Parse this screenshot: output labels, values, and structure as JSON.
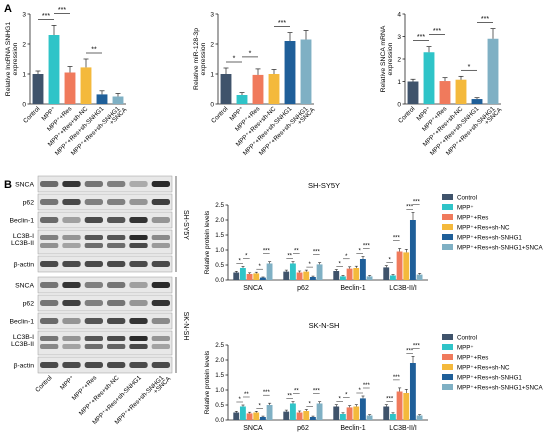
{
  "panel_labels": [
    "A",
    "B"
  ],
  "colors": {
    "Control": "#3f536b",
    "MPP+": "#2fc4c8",
    "MPP+ +Res": "#f07a5c",
    "MPP+ +Res+sh-NC": "#f4b93c",
    "MPP+ +Res+sh-SNHG1": "#1f5f99",
    "MPP+ +Res+sh-SNHG1+SNCA": "#7fb0c4"
  },
  "chart_data": [
    {
      "type": "bar",
      "panel": "A",
      "ylabel": "Relative lncRNA SNHG1 expression",
      "ylim": [
        0,
        3
      ],
      "yticks": [
        "0",
        "1",
        "2",
        "3"
      ],
      "categories": [
        "Control",
        "MPP⁺",
        "MPP⁺+Res",
        "MPP⁺+Res+sh-NC",
        "MPP⁺+Res+sh-SNHG1",
        "MPP⁺+Res+sh-SNHG1\n+SNCA"
      ],
      "values": [
        1.0,
        2.3,
        1.05,
        1.22,
        0.32,
        0.25
      ],
      "errors": [
        0.1,
        0.32,
        0.2,
        0.28,
        0.12,
        0.1
      ],
      "significance": [
        {
          "from": 0,
          "to": 1,
          "label": "***"
        },
        {
          "from": 1,
          "to": 2,
          "label": "***"
        },
        {
          "from": 3,
          "to": 4,
          "label": "**"
        }
      ]
    },
    {
      "type": "bar",
      "panel": "A",
      "ylabel": "Relative miR-128-3p expression",
      "ylim": [
        0,
        3
      ],
      "yticks": [
        "0",
        "1",
        "2",
        "3"
      ],
      "categories": [
        "Control",
        "MPP⁺",
        "MPP⁺+Res",
        "MPP⁺+Res+sh-NC",
        "MPP⁺+Res+sh-SNHG1",
        "MPP⁺+Res+sh-SNHG1\n+SNCA"
      ],
      "values": [
        1.0,
        0.3,
        0.97,
        1.0,
        2.1,
        2.15
      ],
      "errors": [
        0.2,
        0.08,
        0.2,
        0.15,
        0.28,
        0.3
      ],
      "significance": [
        {
          "from": 0,
          "to": 1,
          "label": "*"
        },
        {
          "from": 1,
          "to": 2,
          "label": "*"
        },
        {
          "from": 3,
          "to": 4,
          "label": "***"
        }
      ]
    },
    {
      "type": "bar",
      "panel": "A",
      "ylabel": "Relative SNCA mRNA expression",
      "ylim": [
        0,
        4
      ],
      "yticks": [
        "0",
        "1",
        "2",
        "3",
        "4"
      ],
      "categories": [
        "Control",
        "MPP⁺",
        "MPP⁺+Res",
        "MPP⁺+Res+sh-NC",
        "MPP⁺+Res+sh-SNHG1",
        "MPP⁺+Res+sh-SNHG1\n+SNCA"
      ],
      "values": [
        1.0,
        2.3,
        1.02,
        1.08,
        0.22,
        2.9
      ],
      "errors": [
        0.1,
        0.25,
        0.15,
        0.15,
        0.06,
        0.45
      ],
      "significance": [
        {
          "from": 0,
          "to": 1,
          "label": "***"
        },
        {
          "from": 1,
          "to": 2,
          "label": "***"
        },
        {
          "from": 3,
          "to": 4,
          "label": "*"
        },
        {
          "from": 4,
          "to": 5,
          "label": "***"
        }
      ]
    },
    {
      "type": "bar",
      "panel": "B",
      "title": "SH-SY5Y",
      "ylabel": "Relative protein levels",
      "ylim": [
        0,
        2.5
      ],
      "yticks": [
        "0.0",
        "0.5",
        "1.0",
        "1.5",
        "2.0",
        "2.5"
      ],
      "categories": [
        "SNCA",
        "p62",
        "Beclin-1",
        "LC3B-II/I"
      ],
      "series": [
        {
          "name": "Control",
          "values": [
            0.25,
            0.28,
            0.3,
            0.42
          ],
          "errors": [
            0.04,
            0.05,
            0.05,
            0.06
          ]
        },
        {
          "name": "MPP⁺",
          "values": [
            0.4,
            0.55,
            0.12,
            0.15
          ],
          "errors": [
            0.05,
            0.06,
            0.03,
            0.03
          ]
        },
        {
          "name": "MPP⁺+Res",
          "values": [
            0.2,
            0.25,
            0.38,
            0.95
          ],
          "errors": [
            0.04,
            0.05,
            0.06,
            0.1
          ]
        },
        {
          "name": "MPP⁺+Res+sh-NC",
          "values": [
            0.22,
            0.28,
            0.4,
            0.92
          ],
          "errors": [
            0.04,
            0.05,
            0.06,
            0.1
          ]
        },
        {
          "name": "MPP⁺+Res+sh-SNHG1",
          "values": [
            0.08,
            0.1,
            0.7,
            2.0
          ],
          "errors": [
            0.02,
            0.03,
            0.08,
            0.25
          ]
        },
        {
          "name": "MPP⁺+Res+sh-SNHG1+SNCA",
          "values": [
            0.55,
            0.52,
            0.12,
            0.18
          ],
          "errors": [
            0.06,
            0.06,
            0.03,
            0.04
          ]
        }
      ],
      "stars": [
        [
          "*",
          "*",
          "*",
          "***"
        ],
        [
          "**",
          "**",
          "*",
          "***"
        ],
        [
          "*",
          "*",
          "*",
          "***"
        ],
        [
          "*",
          "***",
          "***",
          "***"
        ]
      ]
    },
    {
      "type": "bar",
      "panel": "B",
      "title": "SK-N-SH",
      "ylabel": "Relative protein levels",
      "ylim": [
        0,
        2.5
      ],
      "yticks": [
        "0.0",
        "0.5",
        "1.0",
        "1.5",
        "2.0",
        "2.5"
      ],
      "categories": [
        "SNCA",
        "p62",
        "Beclin-1",
        "LC3B-II/I"
      ],
      "series": [
        {
          "name": "Control",
          "values": [
            0.25,
            0.28,
            0.45,
            0.45
          ],
          "errors": [
            0.04,
            0.05,
            0.06,
            0.06
          ]
        },
        {
          "name": "MPP⁺",
          "values": [
            0.45,
            0.55,
            0.2,
            0.2
          ],
          "errors": [
            0.05,
            0.06,
            0.04,
            0.04
          ]
        },
        {
          "name": "MPP⁺+Res",
          "values": [
            0.22,
            0.25,
            0.42,
            0.95
          ],
          "errors": [
            0.04,
            0.05,
            0.06,
            0.12
          ]
        },
        {
          "name": "MPP⁺+Res+sh-NC",
          "values": [
            0.25,
            0.3,
            0.45,
            0.9
          ],
          "errors": [
            0.04,
            0.05,
            0.06,
            0.12
          ]
        },
        {
          "name": "MPP⁺+Res+sh-SNHG1",
          "values": [
            0.1,
            0.1,
            0.72,
            1.9
          ],
          "errors": [
            0.03,
            0.03,
            0.08,
            0.22
          ]
        },
        {
          "name": "MPP⁺+Res+sh-SNHG1+SNCA",
          "values": [
            0.5,
            0.55,
            0.15,
            0.15
          ],
          "errors": [
            0.06,
            0.06,
            0.03,
            0.03
          ]
        }
      ],
      "stars": [
        [
          "*",
          "**",
          "*",
          "***"
        ],
        [
          "**",
          "**",
          "*",
          "***"
        ],
        [
          "*",
          "*",
          "*",
          "***"
        ],
        [
          "***",
          "***",
          "***",
          "***"
        ]
      ]
    }
  ],
  "western_blot": [
    {
      "cell_line": "SH-SY5Y",
      "bands": [
        "SNCA",
        "p62",
        "Beclin-1",
        "LC3B-I\nLC3B-II",
        "β-actin"
      ],
      "intensity": [
        [
          0.6,
          0.85,
          0.55,
          0.5,
          0.3,
          0.9
        ],
        [
          0.55,
          0.75,
          0.5,
          0.5,
          0.4,
          0.8
        ],
        [
          0.6,
          0.35,
          0.75,
          0.7,
          0.85,
          0.4
        ],
        [
          0.5,
          0.4,
          0.7,
          0.7,
          0.9,
          0.45
        ],
        [
          0.75,
          0.75,
          0.75,
          0.75,
          0.75,
          0.75
        ]
      ]
    },
    {
      "cell_line": "SK-N-SH",
      "bands": [
        "SNCA",
        "p62",
        "Beclin-1",
        "LC3B-I\nLC3B-II",
        "β-actin"
      ],
      "intensity": [
        [
          0.55,
          0.85,
          0.5,
          0.55,
          0.35,
          0.9
        ],
        [
          0.55,
          0.8,
          0.5,
          0.55,
          0.4,
          0.85
        ],
        [
          0.6,
          0.4,
          0.7,
          0.75,
          0.85,
          0.45
        ],
        [
          0.55,
          0.4,
          0.7,
          0.75,
          0.9,
          0.4
        ],
        [
          0.75,
          0.75,
          0.75,
          0.75,
          0.75,
          0.75
        ]
      ]
    }
  ],
  "blot_lane_labels": [
    "Control",
    "MPP⁺",
    "MPP⁺+Res",
    "MPP⁺+Res+sh-NC",
    "MPP⁺+Res+sh-SNHG1",
    "MPP⁺+Res+sh-SNHG1\n+SNCA"
  ]
}
